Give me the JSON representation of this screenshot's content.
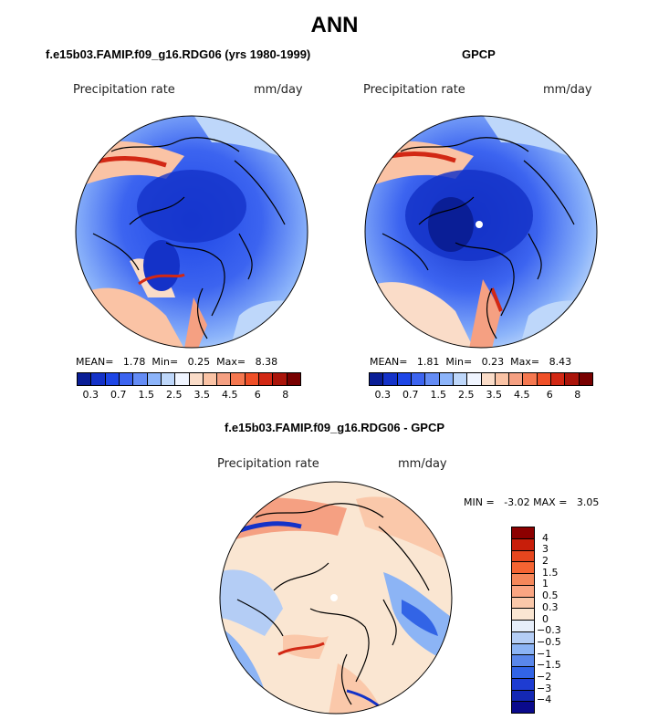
{
  "title": "ANN",
  "panels": {
    "model": {
      "title": "f.e15b03.FAMIP.f09_g16.RDG06 (yrs 1980-1999)",
      "variable": "Precipitation rate",
      "units": "mm/day",
      "mean_label": "MEAN=",
      "mean": "1.78",
      "min_label": "Min=",
      "min": "0.25",
      "max_label": "Max=",
      "max": "8.38"
    },
    "obs": {
      "title": "GPCP",
      "variable": "Precipitation rate",
      "units": "mm/day",
      "mean_label": "MEAN=",
      "mean": "1.81",
      "min_label": "Min=",
      "min": "0.23",
      "max_label": "Max=",
      "max": "8.43"
    },
    "diff": {
      "title": "f.e15b03.FAMIP.f09_g16.RDG06 - GPCP",
      "variable": "Precipitation rate",
      "units": "mm/day",
      "min_label": "MIN =",
      "min": "-3.02",
      "max_label": "MAX =",
      "max": "3.05"
    }
  },
  "colorbar_abs": {
    "ticks": [
      "0.3",
      "0.7",
      "1.5",
      "2.5",
      "3.5",
      "4.5",
      "6",
      "8"
    ],
    "colors": [
      "#0a1e96",
      "#1432c8",
      "#1e46e6",
      "#3c64f0",
      "#648cf5",
      "#8cb4fa",
      "#bed7fa",
      "#f0f5ff",
      "#fadcc8",
      "#fac3a5",
      "#f5a082",
      "#f57850",
      "#f05028",
      "#d22814",
      "#aa140a",
      "#780000"
    ]
  },
  "colorbar_diff": {
    "ticks": [
      "4",
      "3",
      "2",
      "1.5",
      "1",
      "0.5",
      "0.3",
      "0",
      "−0.3",
      "−0.5",
      "−1",
      "−1.5",
      "−2",
      "−3",
      "−4"
    ],
    "colors": [
      "#8c0000",
      "#c81e0a",
      "#e6461e",
      "#f56432",
      "#f5875a",
      "#faa582",
      "#fac8aa",
      "#fae6d2",
      "#e6eefa",
      "#b4cdf5",
      "#8cb4f5",
      "#5a87eb",
      "#3264e6",
      "#1e3cd2",
      "#1428b4",
      "#0a0a8c"
    ]
  },
  "map_colors": {
    "land_outline": "#000000",
    "pole_marker": "#ffffff"
  }
}
